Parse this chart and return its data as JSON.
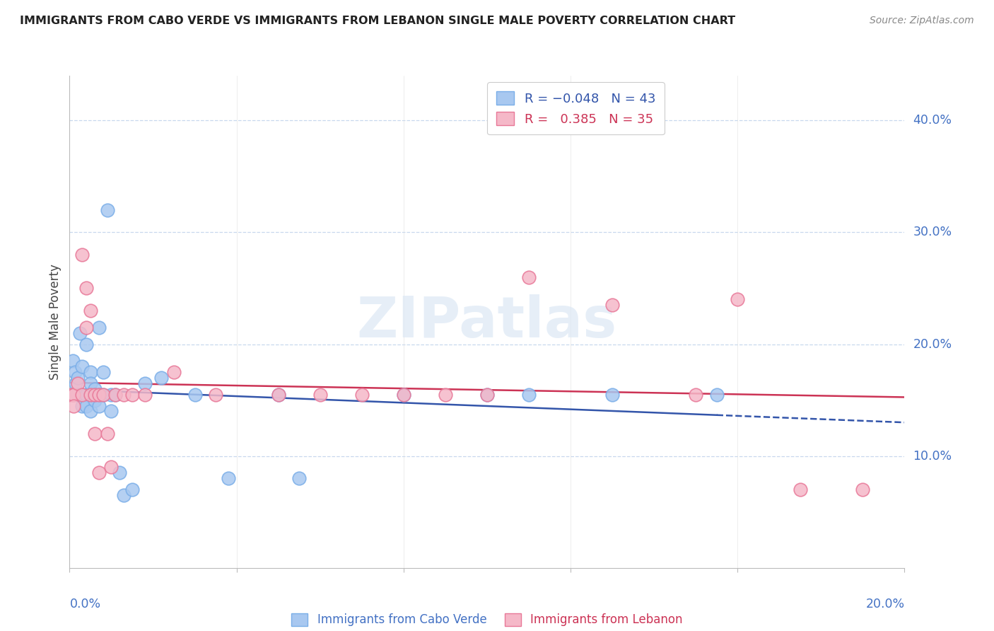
{
  "title": "IMMIGRANTS FROM CABO VERDE VS IMMIGRANTS FROM LEBANON SINGLE MALE POVERTY CORRELATION CHART",
  "source": "Source: ZipAtlas.com",
  "ylabel": "Single Male Poverty",
  "cabo_verde_color": "#a8c8f0",
  "cabo_verde_edge": "#7aaee8",
  "lebanon_color": "#f5b8c8",
  "lebanon_edge": "#e87898",
  "cabo_verde_line_color": "#3355aa",
  "lebanon_line_color": "#cc3355",
  "cabo_verde_R": -0.048,
  "cabo_verde_N": 43,
  "lebanon_R": 0.385,
  "lebanon_N": 35,
  "grid_color": "#c8d8ee",
  "spine_color": "#bbbbbb",
  "axis_label_color": "#4472c4",
  "watermark_color": "#dce8f5",
  "cabo_verde_x": [
    0.0008,
    0.001,
    0.0012,
    0.0015,
    0.002,
    0.002,
    0.0025,
    0.003,
    0.003,
    0.003,
    0.004,
    0.004,
    0.004,
    0.005,
    0.005,
    0.005,
    0.005,
    0.006,
    0.006,
    0.006,
    0.007,
    0.007,
    0.007,
    0.008,
    0.008,
    0.009,
    0.01,
    0.01,
    0.011,
    0.012,
    0.013,
    0.015,
    0.018,
    0.022,
    0.03,
    0.038,
    0.05,
    0.055,
    0.08,
    0.1,
    0.11,
    0.13,
    0.155
  ],
  "cabo_verde_y": [
    0.185,
    0.155,
    0.175,
    0.165,
    0.155,
    0.17,
    0.21,
    0.18,
    0.155,
    0.145,
    0.2,
    0.155,
    0.145,
    0.175,
    0.165,
    0.155,
    0.14,
    0.16,
    0.15,
    0.155,
    0.215,
    0.155,
    0.145,
    0.175,
    0.155,
    0.32,
    0.155,
    0.14,
    0.155,
    0.085,
    0.065,
    0.07,
    0.165,
    0.17,
    0.155,
    0.08,
    0.155,
    0.08,
    0.155,
    0.155,
    0.155,
    0.155,
    0.155
  ],
  "lebanon_x": [
    0.0005,
    0.001,
    0.001,
    0.002,
    0.003,
    0.003,
    0.004,
    0.004,
    0.005,
    0.005,
    0.006,
    0.006,
    0.007,
    0.007,
    0.008,
    0.009,
    0.01,
    0.011,
    0.013,
    0.015,
    0.018,
    0.025,
    0.035,
    0.05,
    0.06,
    0.07,
    0.08,
    0.09,
    0.1,
    0.11,
    0.13,
    0.15,
    0.16,
    0.175,
    0.19
  ],
  "lebanon_y": [
    0.155,
    0.155,
    0.145,
    0.165,
    0.28,
    0.155,
    0.25,
    0.215,
    0.23,
    0.155,
    0.155,
    0.12,
    0.155,
    0.085,
    0.155,
    0.12,
    0.09,
    0.155,
    0.155,
    0.155,
    0.155,
    0.175,
    0.155,
    0.155,
    0.155,
    0.155,
    0.155,
    0.155,
    0.155,
    0.26,
    0.235,
    0.155,
    0.24,
    0.07,
    0.07
  ],
  "xlim": [
    0.0,
    0.2
  ],
  "ylim": [
    0.0,
    0.44
  ],
  "yticks": [
    0.1,
    0.2,
    0.3,
    0.4
  ],
  "ytick_labels": [
    "10.0%",
    "20.0%",
    "30.0%",
    "40.0%"
  ],
  "xtick_labels": [
    "0.0%",
    "20.0%"
  ]
}
